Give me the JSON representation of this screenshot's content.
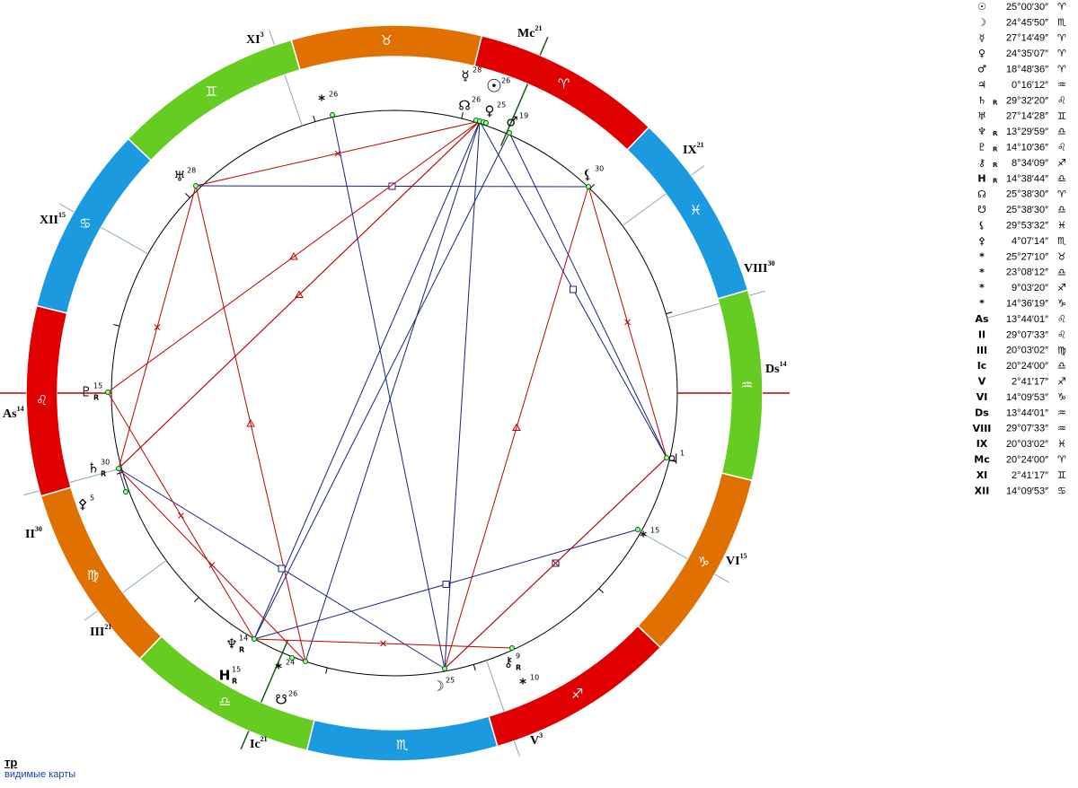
{
  "signs": [
    {
      "glyph": "♈",
      "color": "#e00000"
    },
    {
      "glyph": "♉",
      "color": "#e07000"
    },
    {
      "glyph": "♊",
      "color": "#66cc22"
    },
    {
      "glyph": "♋",
      "color": "#1b9ae0"
    },
    {
      "glyph": "♌",
      "color": "#e00000"
    },
    {
      "glyph": "♍",
      "color": "#e07000"
    },
    {
      "glyph": "♎",
      "color": "#66cc22"
    },
    {
      "glyph": "♏",
      "color": "#1b9ae0"
    },
    {
      "glyph": "♐",
      "color": "#e00000"
    },
    {
      "glyph": "♑",
      "color": "#e07000"
    },
    {
      "glyph": "♒",
      "color": "#66cc22"
    },
    {
      "glyph": "♓",
      "color": "#1b9ae0"
    }
  ],
  "houses": [
    {
      "label": "As",
      "deg": "14"
    },
    {
      "label": "II",
      "deg": "30"
    },
    {
      "label": "III",
      "deg": "21"
    },
    {
      "label": "Ic",
      "deg": "21"
    },
    {
      "label": "V",
      "deg": "3"
    },
    {
      "label": "VI",
      "deg": "15"
    },
    {
      "label": "Ds",
      "deg": "14"
    },
    {
      "label": "VIII",
      "deg": "30"
    },
    {
      "label": "IX",
      "deg": "21"
    },
    {
      "label": "Mc",
      "deg": "21"
    },
    {
      "label": "XI",
      "deg": "3"
    },
    {
      "label": "XII",
      "deg": "15"
    }
  ],
  "points": [
    {
      "glyph": "☿",
      "deg": "28"
    },
    {
      "glyph": "☉",
      "deg": "26"
    },
    {
      "glyph": "☊",
      "deg": "26"
    },
    {
      "glyph": "♀",
      "deg": "25"
    },
    {
      "glyph": "♂",
      "deg": "19"
    },
    {
      "glyph": "*",
      "deg": "26"
    },
    {
      "glyph": "♅",
      "deg": "28"
    },
    {
      "glyph": "⚸",
      "deg": "30"
    },
    {
      "glyph": "♇",
      "deg": "15",
      "retro": "R"
    },
    {
      "glyph": "♄",
      "deg": "30",
      "retro": "R"
    },
    {
      "glyph": "⚴",
      "deg": "5"
    },
    {
      "glyph": "♃",
      "deg": "1"
    },
    {
      "glyph": "*",
      "deg": "15"
    },
    {
      "glyph": "⚷",
      "deg": "9",
      "retro": "R"
    },
    {
      "glyph": "*",
      "deg": "10"
    },
    {
      "glyph": "☽",
      "deg": "25"
    },
    {
      "glyph": "♆",
      "deg": "14",
      "retro": "R"
    },
    {
      "glyph": "*",
      "deg": "24"
    },
    {
      "glyph": "H",
      "deg": "15",
      "retro": "R"
    },
    {
      "glyph": "☋",
      "deg": "26"
    }
  ],
  "table": {
    "rows": [
      {
        "glyph": "☉",
        "position": "25°00′30″",
        "sign": "♈"
      },
      {
        "glyph": "☽",
        "position": "24°45′50″",
        "sign": "♏"
      },
      {
        "glyph": "☿",
        "position": "27°14′49″",
        "sign": "♈"
      },
      {
        "glyph": "♀",
        "position": "24°35′07″",
        "sign": "♈"
      },
      {
        "glyph": "♂",
        "position": "18°48′36″",
        "sign": "♈"
      },
      {
        "glyph": "♃",
        "position": "0°16′12″",
        "sign": "♒"
      },
      {
        "glyph": "♄",
        "retro": "R",
        "position": "29°32′20″",
        "sign": "♌"
      },
      {
        "glyph": "♅",
        "position": "27°14′28″",
        "sign": "♊"
      },
      {
        "glyph": "♆",
        "retro": "R",
        "position": "13°29′59″",
        "sign": "♎"
      },
      {
        "glyph": "♇",
        "retro": "R",
        "position": "14°10′36″",
        "sign": "♌"
      },
      {
        "glyph": "⚷",
        "retro": "R",
        "position": "8°34′09″",
        "sign": "♐"
      },
      {
        "glyph": "H",
        "retro": "R",
        "position": "14°38′44″",
        "sign": "♎"
      },
      {
        "glyph": "☊",
        "position": "25°38′30″",
        "sign": "♈"
      },
      {
        "glyph": "☋",
        "position": "25°38′30″",
        "sign": "♎"
      },
      {
        "glyph": "⚸",
        "position": "29°53′32″",
        "sign": "♓"
      },
      {
        "glyph": "⚴",
        "position": "4°07′14″",
        "sign": "♏"
      },
      {
        "glyph": "*",
        "position": "25°27′10″",
        "sign": "♉"
      },
      {
        "glyph": "*",
        "position": "23°08′12″",
        "sign": "♎"
      },
      {
        "glyph": "*",
        "position": "9°03′20″",
        "sign": "♐"
      },
      {
        "glyph": "*",
        "position": "14°36′19″",
        "sign": "♑"
      },
      {
        "glyph": "As",
        "position": "13°44′01″",
        "sign": "♌"
      },
      {
        "glyph": "II",
        "position": "29°07′33″",
        "sign": "♌"
      },
      {
        "glyph": "III",
        "position": "20°03′02″",
        "sign": "♍"
      },
      {
        "glyph": "Ic",
        "position": "20°24′00″",
        "sign": "♎"
      },
      {
        "glyph": "V",
        "position": "2°41′17″",
        "sign": "♐"
      },
      {
        "glyph": "VI",
        "position": "14°09′53″",
        "sign": "♑"
      },
      {
        "glyph": "Ds",
        "position": "13°44′01″",
        "sign": "♒"
      },
      {
        "glyph": "VIII",
        "position": "29°07′33″",
        "sign": "♒"
      },
      {
        "glyph": "IX",
        "position": "20°03′02″",
        "sign": "♓"
      },
      {
        "glyph": "Mc",
        "position": "20°24′00″",
        "sign": "♈"
      },
      {
        "glyph": "XI",
        "position": "2°41′17″",
        "sign": "♊"
      },
      {
        "glyph": "XII",
        "position": "14°09′53″",
        "sign": "♋"
      }
    ]
  },
  "footer": {
    "title": "тр",
    "link": "видимые карты"
  }
}
